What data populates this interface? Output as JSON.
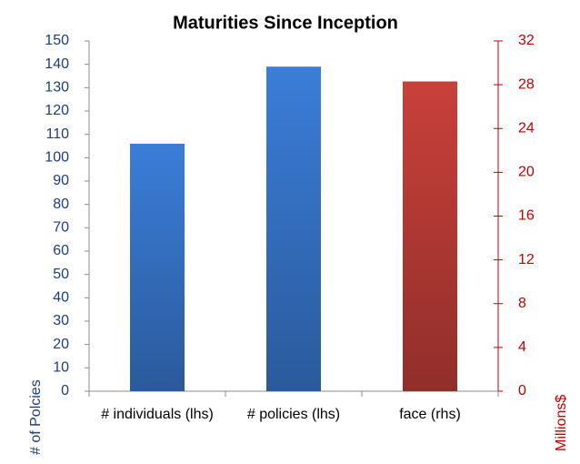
{
  "chart_data": {
    "type": "bar",
    "title": "Maturities Since Inception",
    "categories": [
      "# individuals (lhs)",
      "# policies (lhs)",
      "face (rhs)"
    ],
    "series": [
      {
        "color": "#3b7dd8",
        "values": [
          106,
          139,
          null
        ]
      },
      {
        "color": "#c9403a",
        "axis": "y2",
        "values": [
          null,
          null,
          28.3
        ]
      }
    ],
    "ylabel": "# of Polcies",
    "y2label": "Millions$",
    "ylim": [
      0,
      150
    ],
    "yticks": [
      0,
      10,
      20,
      30,
      40,
      50,
      60,
      70,
      80,
      90,
      100,
      110,
      120,
      130,
      140,
      150
    ],
    "y2lim": [
      0,
      32
    ],
    "y2ticks": [
      0,
      4,
      8,
      12,
      16,
      20,
      24,
      28,
      32
    ],
    "ycolor": "#1f3d7a",
    "y2color": "#c00000",
    "grid": false
  }
}
